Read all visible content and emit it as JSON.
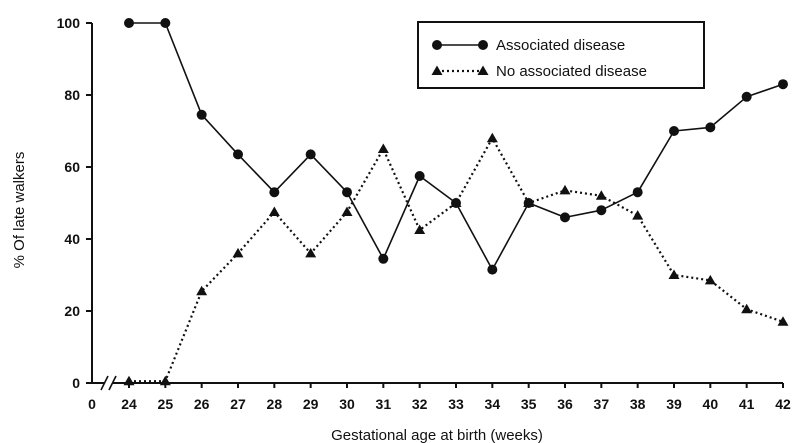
{
  "chart_data": {
    "type": "line",
    "xlabel": "Gestational age at birth (weeks)",
    "ylabel": "% Of late walkers",
    "xlim": [
      24,
      42
    ],
    "ylim": [
      0,
      100
    ],
    "x_ticks": [
      "0",
      "24",
      "25",
      "26",
      "27",
      "28",
      "29",
      "30",
      "31",
      "32",
      "33",
      "34",
      "35",
      "36",
      "37",
      "38",
      "39",
      "40",
      "41",
      "42"
    ],
    "y_ticks": [
      "0",
      "20",
      "40",
      "60",
      "80",
      "100"
    ],
    "axis_break": true,
    "grid": false,
    "legend_position": "top-right",
    "x": [
      24,
      25,
      26,
      27,
      28,
      29,
      30,
      31,
      32,
      33,
      34,
      35,
      36,
      37,
      38,
      39,
      40,
      41,
      42
    ],
    "series": [
      {
        "name": "Associated disease",
        "marker": "circle",
        "line_style": "solid",
        "values": [
          100,
          100,
          74.5,
          63.5,
          53,
          63.5,
          53,
          34.5,
          57.5,
          50,
          31.5,
          50,
          46,
          48,
          53,
          70,
          71,
          79.5,
          83
        ]
      },
      {
        "name": "No associated disease",
        "marker": "triangle",
        "line_style": "dotted",
        "values": [
          0.5,
          0.5,
          25.5,
          36,
          47.5,
          36,
          47.5,
          65,
          42.5,
          50,
          68,
          50,
          53.5,
          52,
          46.5,
          30,
          28.5,
          20.5,
          17
        ]
      }
    ]
  }
}
